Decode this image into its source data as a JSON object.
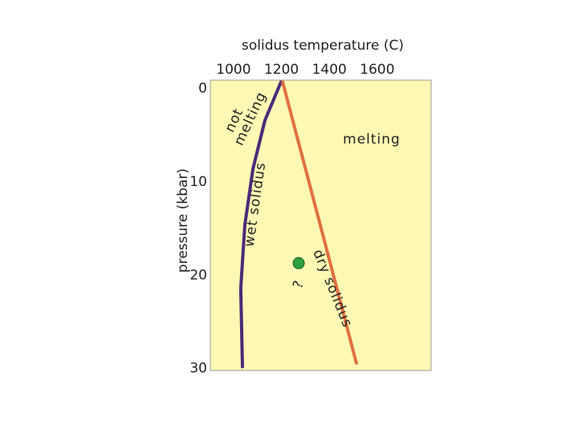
{
  "chart_data": {
    "type": "line",
    "x_title": "solidus temperature (C)",
    "y_title": "pressure (kbar)",
    "xlim": [
      903,
      1825
    ],
    "xticks": [
      1000,
      1200,
      1400,
      1600
    ],
    "ylim": [
      -0.9,
      30.2
    ],
    "yticks": [
      0,
      10,
      20,
      30
    ],
    "y_direction": "down",
    "x_axis_position": "top",
    "background": "#fdf9b4",
    "series": [
      {
        "name": "wet solidus",
        "color": "#4b2a7a",
        "x": [
          1198,
          1131,
          1081,
          1047,
          1030,
          1037
        ],
        "values": [
          -0.7,
          3.4,
          8.6,
          14.6,
          21.4,
          29.8
        ]
      },
      {
        "name": "dry solidus",
        "color": "#e07040",
        "x": [
          1205,
          1360,
          1513
        ],
        "values": [
          -0.7,
          14.4,
          29.4
        ]
      }
    ],
    "points": [
      {
        "label": "?",
        "x": 1272,
        "y": 18.7,
        "color": "#2e9e3e"
      }
    ],
    "annotations": [
      "not",
      "melting",
      "melting"
    ]
  }
}
